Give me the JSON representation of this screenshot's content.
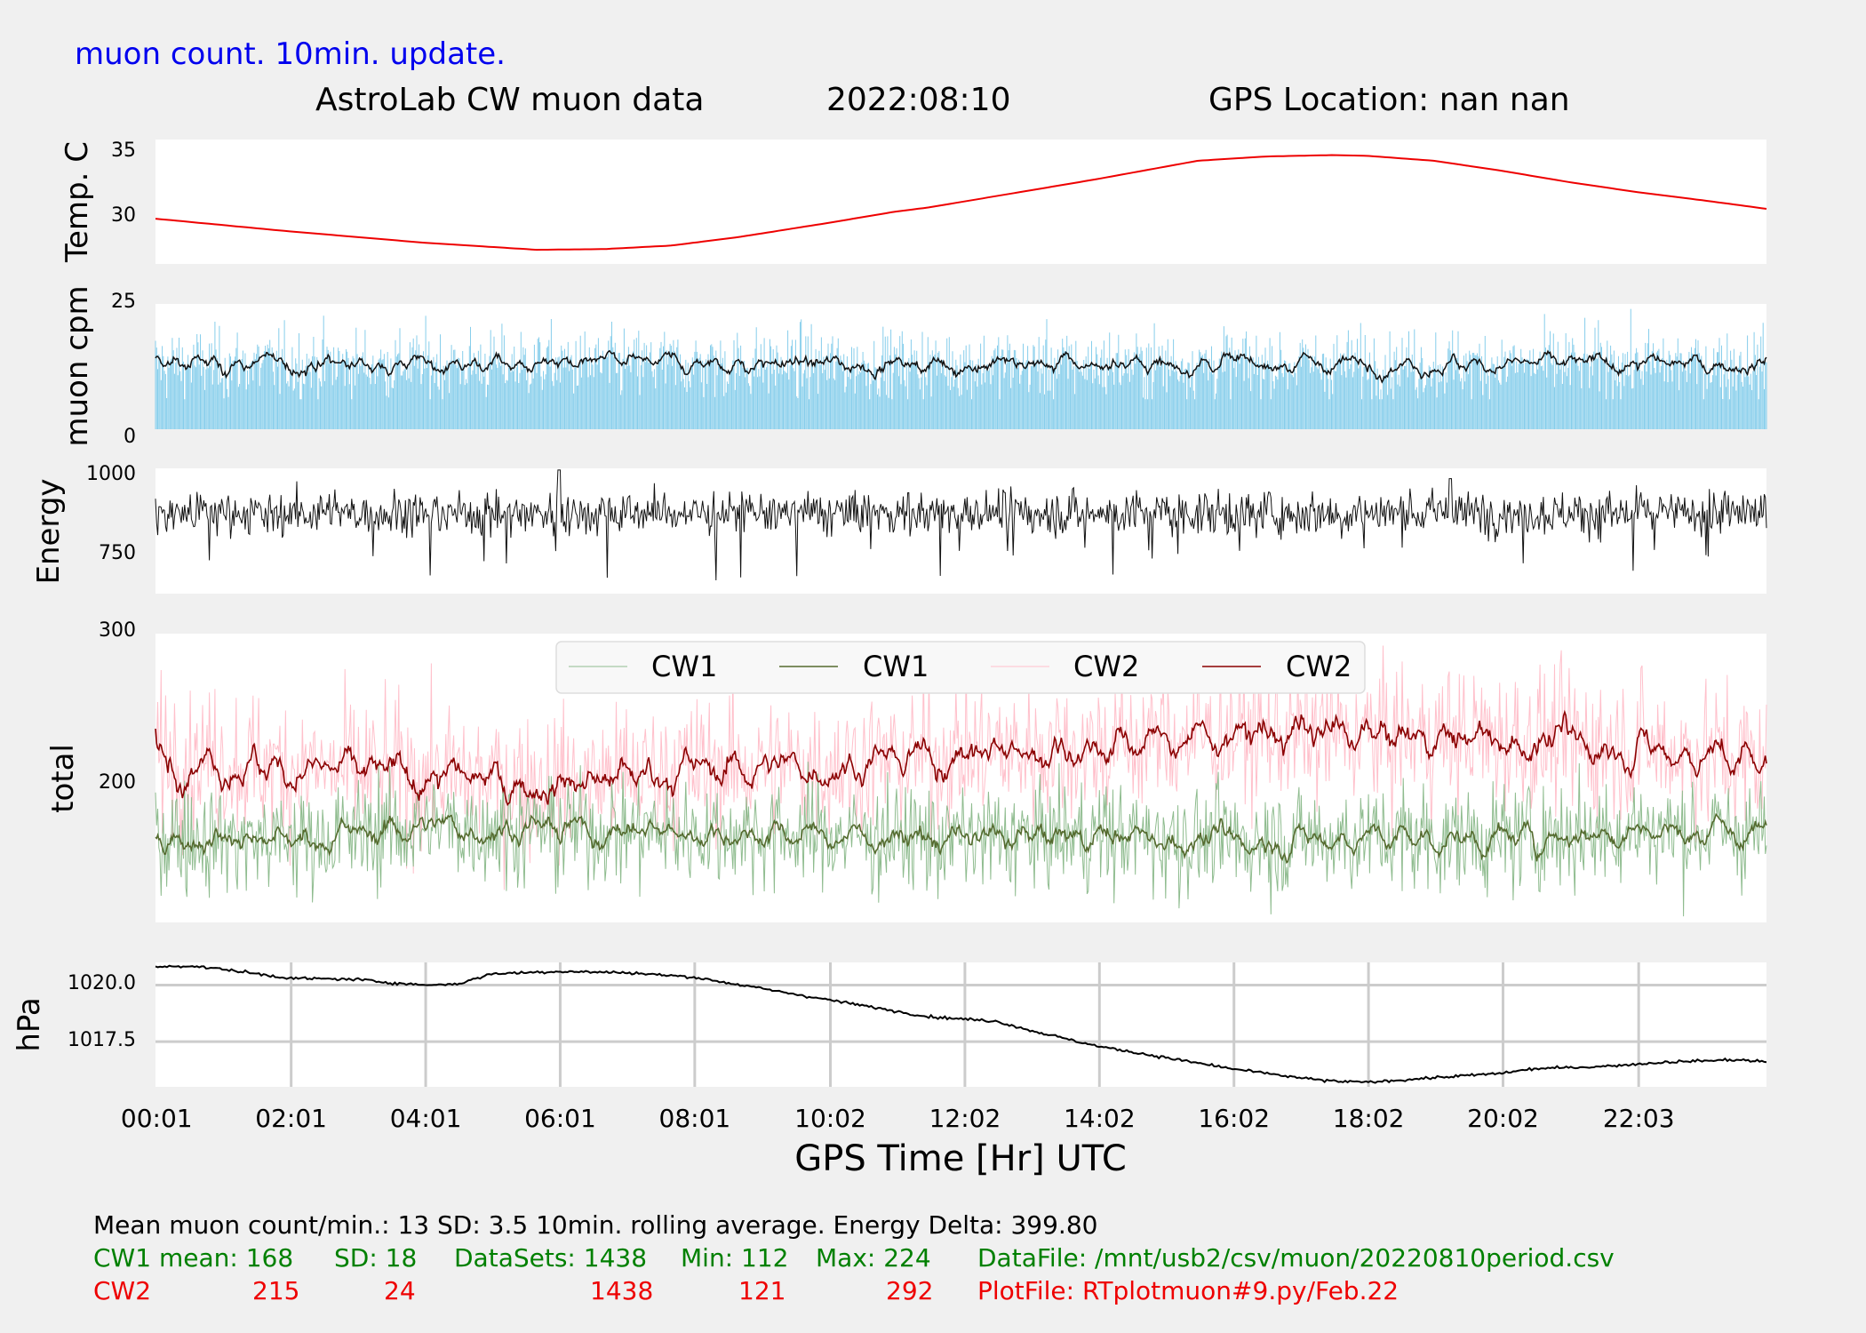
{
  "header": {
    "update_note": "muon count.  10min. update.",
    "title": "AstroLab CW muon data",
    "date": "2022:08:10",
    "location": "GPS Location: nan   nan"
  },
  "colors": {
    "background": "#f0f0f0",
    "update_note": "#0000ee",
    "temperature": "#ee0000",
    "muon_bars": "#87ceeb",
    "cw1_raw": "#8fbc8f",
    "cw1_avg": "#556b2f",
    "cw2_raw": "#ffc0cb",
    "cw2_avg": "#8b0000",
    "stats_green": "#008000",
    "stats_red": "#ee0000"
  },
  "chart_data": [
    {
      "type": "line",
      "ylabel": "Temp. C",
      "ylim": [
        26.7,
        35.5
      ],
      "yticks": [
        "30",
        "35"
      ],
      "x_hours": [
        0.0,
        2.0,
        4.0,
        5.67,
        6.67,
        7.67,
        8.67,
        10.0,
        11.0,
        11.5,
        12.0,
        14.0,
        15.5,
        16.5,
        17.5,
        18.0,
        19.0,
        20.0,
        21.0,
        22.0,
        23.0,
        23.95
      ],
      "series": [
        {
          "values": [
            29.9,
            29.0,
            28.2,
            27.7,
            27.75,
            28.0,
            28.6,
            29.6,
            30.4,
            30.7,
            31.1,
            32.7,
            34.0,
            34.3,
            34.4,
            34.35,
            34.0,
            33.3,
            32.5,
            31.8,
            31.2,
            30.6
          ]
        }
      ]
    },
    {
      "type": "bar",
      "ylabel": "muon cpm",
      "ylim": [
        0,
        25
      ],
      "yticks": [
        "0",
        "25"
      ],
      "mean": 13,
      "sd": 3.5,
      "count": 1438,
      "series": [
        {
          "values": "1438 per-minute muon counts (mean 13, SD 3.5, peaks near 24)"
        },
        {
          "values": "10min. rolling average, ~11-17"
        }
      ]
    },
    {
      "type": "line",
      "ylabel": "Energy",
      "ylim": [
        640,
        1005
      ],
      "yticks": [
        "750",
        "1000"
      ],
      "notes": "noisy per-minute energy trace around 850-900, spike to ~1000 near 06:01 and ~970 near 19:15, dips near 700"
    },
    {
      "type": "line",
      "ylabel": "total",
      "ylim": [
        108,
        300
      ],
      "yticks": [
        "200",
        "300"
      ],
      "legend": [
        "CW1",
        "CW1",
        "CW2",
        "CW2"
      ],
      "legend_position": "top-center",
      "series": [
        {
          "name": "CW1",
          "mean": 168,
          "sd": 18,
          "min": 112,
          "max": 224,
          "datasets": 1438
        },
        {
          "name": "CW1",
          "x_hours": [
            0,
            2,
            4,
            6,
            8,
            10,
            12,
            14,
            16,
            18,
            20,
            22,
            24
          ],
          "values": [
            166,
            162,
            172,
            170,
            168,
            166,
            163,
            166,
            162,
            165,
            163,
            170,
            167
          ]
        },
        {
          "name": "CW2",
          "mean": 215,
          "sd": 24,
          "min": 121,
          "max": 292,
          "datasets": 1438
        },
        {
          "name": "CW2",
          "x_hours": [
            0,
            2,
            4,
            6,
            8,
            10,
            12,
            14,
            16,
            18,
            20,
            22,
            24
          ],
          "values": [
            220,
            210,
            205,
            200,
            210,
            212,
            220,
            225,
            234,
            232,
            230,
            225,
            214
          ]
        }
      ]
    },
    {
      "type": "line",
      "ylabel": "hPa",
      "xlabel": "GPS Time  [Hr] UTC",
      "ylim": [
        1015.5,
        1021.0
      ],
      "yticks": [
        "1017.5",
        "1020.0"
      ],
      "grid": true,
      "xticks": [
        "00:01",
        "02:01",
        "04:01",
        "06:01",
        "08:01",
        "10:02",
        "12:02",
        "14:02",
        "16:02",
        "18:02",
        "20:02",
        "22:03"
      ],
      "x_hours": [
        0.0,
        0.5,
        1.0,
        2.0,
        3.0,
        3.5,
        4.0,
        4.5,
        5.0,
        6.0,
        7.0,
        8.0,
        8.5,
        9.5,
        10.5,
        11.5,
        12.5,
        13.0,
        14.0,
        15.0,
        16.0,
        17.0,
        17.5,
        18.0,
        19.0,
        20.0,
        20.5,
        21.5,
        22.5,
        23.5,
        23.95
      ],
      "series": [
        {
          "values": [
            1020.8,
            1020.85,
            1020.7,
            1020.3,
            1020.25,
            1020.1,
            1020.0,
            1020.05,
            1020.5,
            1020.6,
            1020.55,
            1020.35,
            1020.1,
            1019.6,
            1019.1,
            1018.6,
            1018.4,
            1018.0,
            1017.3,
            1016.8,
            1016.3,
            1015.9,
            1015.75,
            1015.7,
            1015.9,
            1016.1,
            1016.3,
            1016.4,
            1016.6,
            1016.7,
            1016.6
          ]
        }
      ]
    }
  ],
  "stats": {
    "line1": "Mean muon count/min.: 13  SD: 3.5   10min. rolling average.    Energy Delta:  399.80",
    "cw1": {
      "label": "CW1 mean: 168",
      "sd": "SD: 18",
      "datasets": "DataSets: 1438",
      "min": "Min: 112",
      "max": "Max: 224",
      "file": "DataFile: /mnt/usb2/csv/muon/20220810period.csv"
    },
    "cw2": {
      "label": "CW2",
      "mean": "215",
      "sd": "24",
      "datasets": "1438",
      "min": "121",
      "max": "292",
      "file": "PlotFile: RTplotmuon#9.py/Feb.22"
    }
  }
}
